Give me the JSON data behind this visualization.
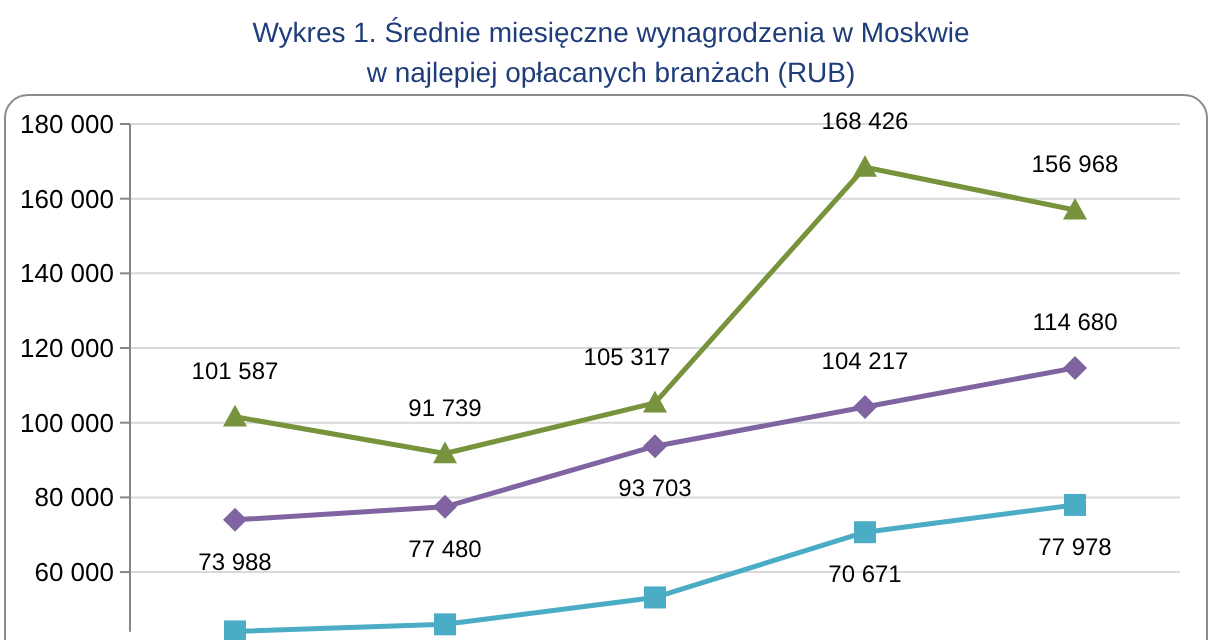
{
  "chart_data": {
    "type": "line",
    "title": "Wykres 1. Średnie miesięczne wynagrodzenia w Moskwie\nw najlepiej opłacanych branżach (RUB)",
    "categories": [
      null,
      null,
      null,
      null,
      null
    ],
    "ylim": [
      44000,
      180000
    ],
    "yticks": [
      {
        "value": 60000,
        "label": "60 000"
      },
      {
        "value": 80000,
        "label": "80 000"
      },
      {
        "value": 100000,
        "label": "100 000"
      },
      {
        "value": 120000,
        "label": "120 000"
      },
      {
        "value": 140000,
        "label": "140 000"
      },
      {
        "value": 160000,
        "label": "160 000"
      },
      {
        "value": 180000,
        "label": "180 000"
      }
    ],
    "grid": "y",
    "tick_labels": "y",
    "series": [
      {
        "color": "#77933c",
        "marker": "triangle",
        "values": [
          101587,
          91739,
          105317,
          168426,
          156968
        ],
        "value_labels": [
          "101 587",
          "91 739",
          "105 317",
          "168 426",
          "156 968"
        ]
      },
      {
        "color": "#8064a2",
        "marker": "diamond",
        "values": [
          73988,
          77480,
          93703,
          104217,
          114680
        ],
        "value_labels": [
          "73 988",
          "77 480",
          "93 703",
          "104 217",
          "114 680"
        ]
      },
      {
        "color": "#4bacc6",
        "marker": "square",
        "values": [
          44100,
          46000,
          53200,
          70671,
          77978
        ],
        "value_labels": [
          null,
          null,
          null,
          "70 671",
          "77 978"
        ]
      }
    ]
  }
}
